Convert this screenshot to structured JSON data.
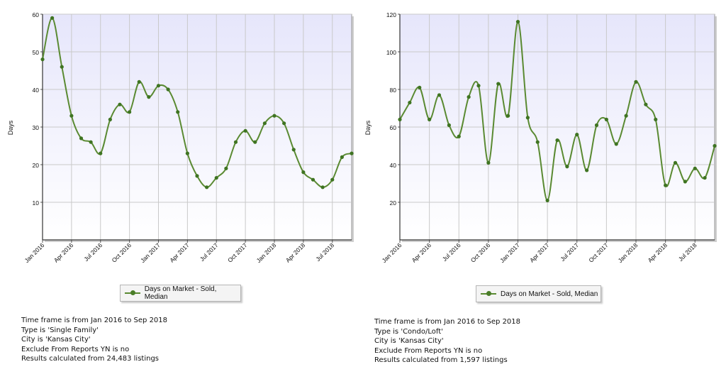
{
  "chart_data": [
    {
      "type": "line",
      "ylabel": "Days",
      "ylim": [
        0,
        60
      ],
      "yticks": [
        10,
        20,
        30,
        40,
        50,
        60
      ],
      "tick_labels": [
        "Jan 2016",
        "Apr 2016",
        "Jul 2016",
        "Oct 2016",
        "Jan 2017",
        "Apr 2017",
        "Jul 2017",
        "Oct 2017",
        "Jan 2018",
        "Apr 2018",
        "Jul 2018"
      ],
      "grid": true,
      "legend_position": "bottom-center",
      "series": [
        {
          "name": "Days on Market - Sold, Median",
          "color": "#5a8a32",
          "x": [
            "Jan 2016",
            "Feb 2016",
            "Mar 2016",
            "Apr 2016",
            "May 2016",
            "Jun 2016",
            "Jul 2016",
            "Aug 2016",
            "Sep 2016",
            "Oct 2016",
            "Nov 2016",
            "Dec 2016",
            "Jan 2017",
            "Feb 2017",
            "Mar 2017",
            "Apr 2017",
            "May 2017",
            "Jun 2017",
            "Jul 2017",
            "Aug 2017",
            "Sep 2017",
            "Oct 2017",
            "Nov 2017",
            "Dec 2017",
            "Jan 2018",
            "Feb 2018",
            "Mar 2018",
            "Apr 2018",
            "May 2018",
            "Jun 2018",
            "Jul 2018",
            "Aug 2018",
            "Sep 2018"
          ],
          "values": [
            48,
            59,
            46,
            33,
            27,
            26,
            23,
            32,
            36,
            34,
            42,
            38,
            41,
            40,
            34,
            23,
            17,
            14,
            16.5,
            19,
            26,
            29,
            26,
            31,
            33,
            31,
            24,
            18,
            16,
            14,
            16,
            22,
            23
          ]
        }
      ],
      "info_lines": [
        "Time frame is from Jan 2016 to Sep 2018",
        "Type is 'Single Family'",
        "City is 'Kansas City'",
        "Exclude From Reports YN is no",
        "Results calculated from 24,483 listings"
      ]
    },
    {
      "type": "line",
      "ylabel": "Days",
      "ylim": [
        0,
        120
      ],
      "yticks": [
        20,
        40,
        60,
        80,
        100,
        120
      ],
      "tick_labels": [
        "Jan 2016",
        "Apr 2016",
        "Jul 2016",
        "Oct 2016",
        "Jan 2017",
        "Apr 2017",
        "Jul 2017",
        "Oct 2017",
        "Jan 2018",
        "Apr 2018",
        "Jul 2018"
      ],
      "grid": true,
      "legend_position": "bottom-center",
      "series": [
        {
          "name": "Days on Market - Sold, Median",
          "color": "#5a8a32",
          "x": [
            "Jan 2016",
            "Feb 2016",
            "Mar 2016",
            "Apr 2016",
            "May 2016",
            "Jun 2016",
            "Jul 2016",
            "Aug 2016",
            "Sep 2016",
            "Oct 2016",
            "Nov 2016",
            "Dec 2016",
            "Jan 2017",
            "Feb 2017",
            "Mar 2017",
            "Apr 2017",
            "May 2017",
            "Jun 2017",
            "Jul 2017",
            "Aug 2017",
            "Sep 2017",
            "Oct 2017",
            "Nov 2017",
            "Dec 2017",
            "Jan 2018",
            "Feb 2018",
            "Mar 2018",
            "Apr 2018",
            "May 2018",
            "Jun 2018",
            "Jul 2018",
            "Aug 2018",
            "Sep 2018"
          ],
          "values": [
            64,
            73,
            81,
            64,
            77,
            61,
            55,
            76,
            82,
            41,
            83,
            66,
            116,
            65,
            52,
            21,
            53,
            39,
            56,
            37,
            61,
            64,
            51,
            66,
            84,
            72,
            64,
            29,
            41,
            31,
            38,
            33,
            50
          ]
        }
      ],
      "info_lines": [
        "Time frame is from Jan 2016 to Sep 2018",
        "Type is 'Condo/Loft'",
        "City is 'Kansas City'",
        "Exclude From Reports YN is no",
        "Results calculated from 1,597 listings"
      ]
    }
  ]
}
